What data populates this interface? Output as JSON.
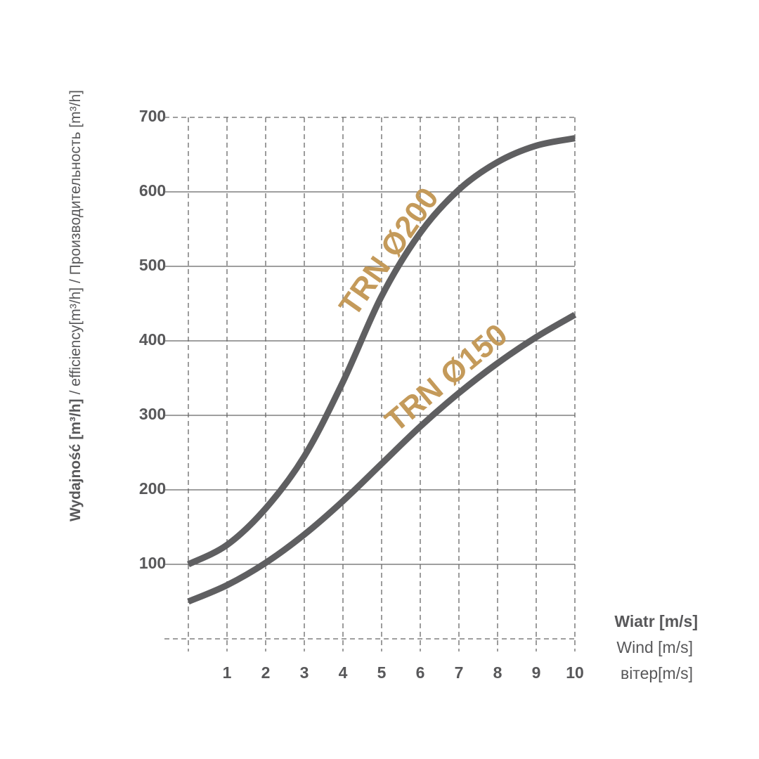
{
  "chart_data": {
    "type": "line",
    "y_label_bold": "Wydajność [m³/h]",
    "y_label": "/ efficiency[m³/h] / Производительность  [m³/h]",
    "x_label": [
      "Wiatr [m/s]",
      "Wind [m/s]",
      "вітер[m/s]"
    ],
    "x": [
      0,
      1,
      2,
      3,
      4,
      5,
      6,
      7,
      8,
      9,
      10
    ],
    "series": [
      {
        "name": "TRN Ø200",
        "color": "#5f5f61",
        "label_color": "#c49a5a",
        "values": [
          100,
          126,
          175,
          245,
          345,
          460,
          545,
          603,
          640,
          662,
          672
        ]
      },
      {
        "name": "TRN Ø150",
        "color": "#5f5f61",
        "label_color": "#c49a5a",
        "values": [
          50,
          72,
          102,
          140,
          185,
          235,
          285,
          330,
          370,
          405,
          435
        ]
      }
    ],
    "xlim": [
      0,
      10
    ],
    "xticks": [
      1,
      2,
      3,
      4,
      5,
      6,
      7,
      8,
      9,
      10
    ],
    "ylim": [
      0,
      700
    ],
    "yticks": [
      100,
      200,
      300,
      400,
      500,
      600,
      700
    ],
    "grid": true
  }
}
